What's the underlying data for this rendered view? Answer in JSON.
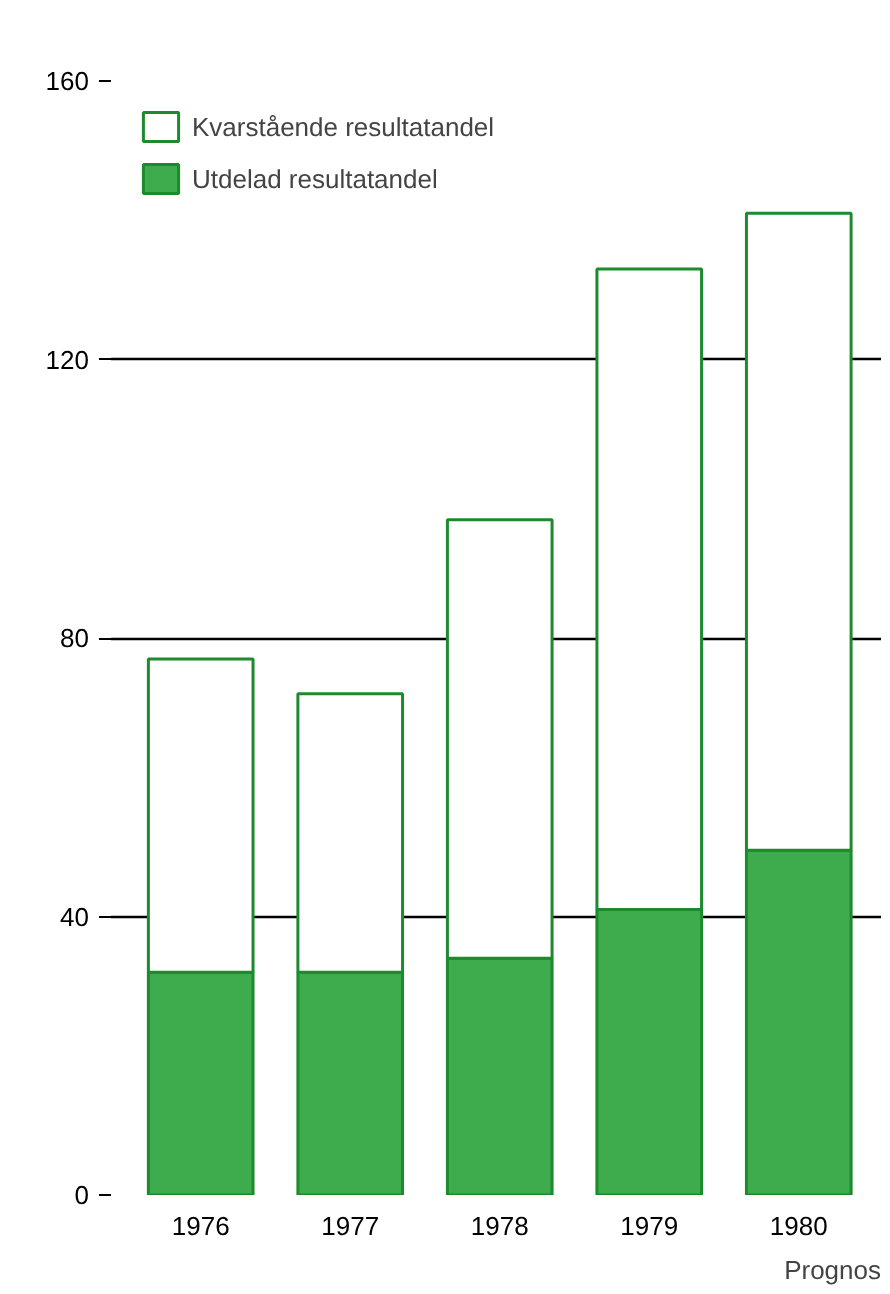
{
  "chart_data": {
    "type": "bar",
    "stacked": true,
    "categories": [
      "1976",
      "1977",
      "1978",
      "1979",
      "1980"
    ],
    "series": [
      {
        "name": "Utdelad resultatandel",
        "color": "#3eab4c",
        "values": [
          32,
          32,
          34,
          41,
          49.5
        ]
      },
      {
        "name": "Kvarstående resultatandel",
        "color": "#ffffff",
        "values": [
          45,
          40,
          63,
          92,
          91.5
        ]
      }
    ],
    "ylim": [
      0,
      160
    ],
    "yticks": [
      0,
      40,
      80,
      120,
      160
    ],
    "grid": "y",
    "legend": "top left",
    "annotations": [
      "Prognos"
    ]
  }
}
